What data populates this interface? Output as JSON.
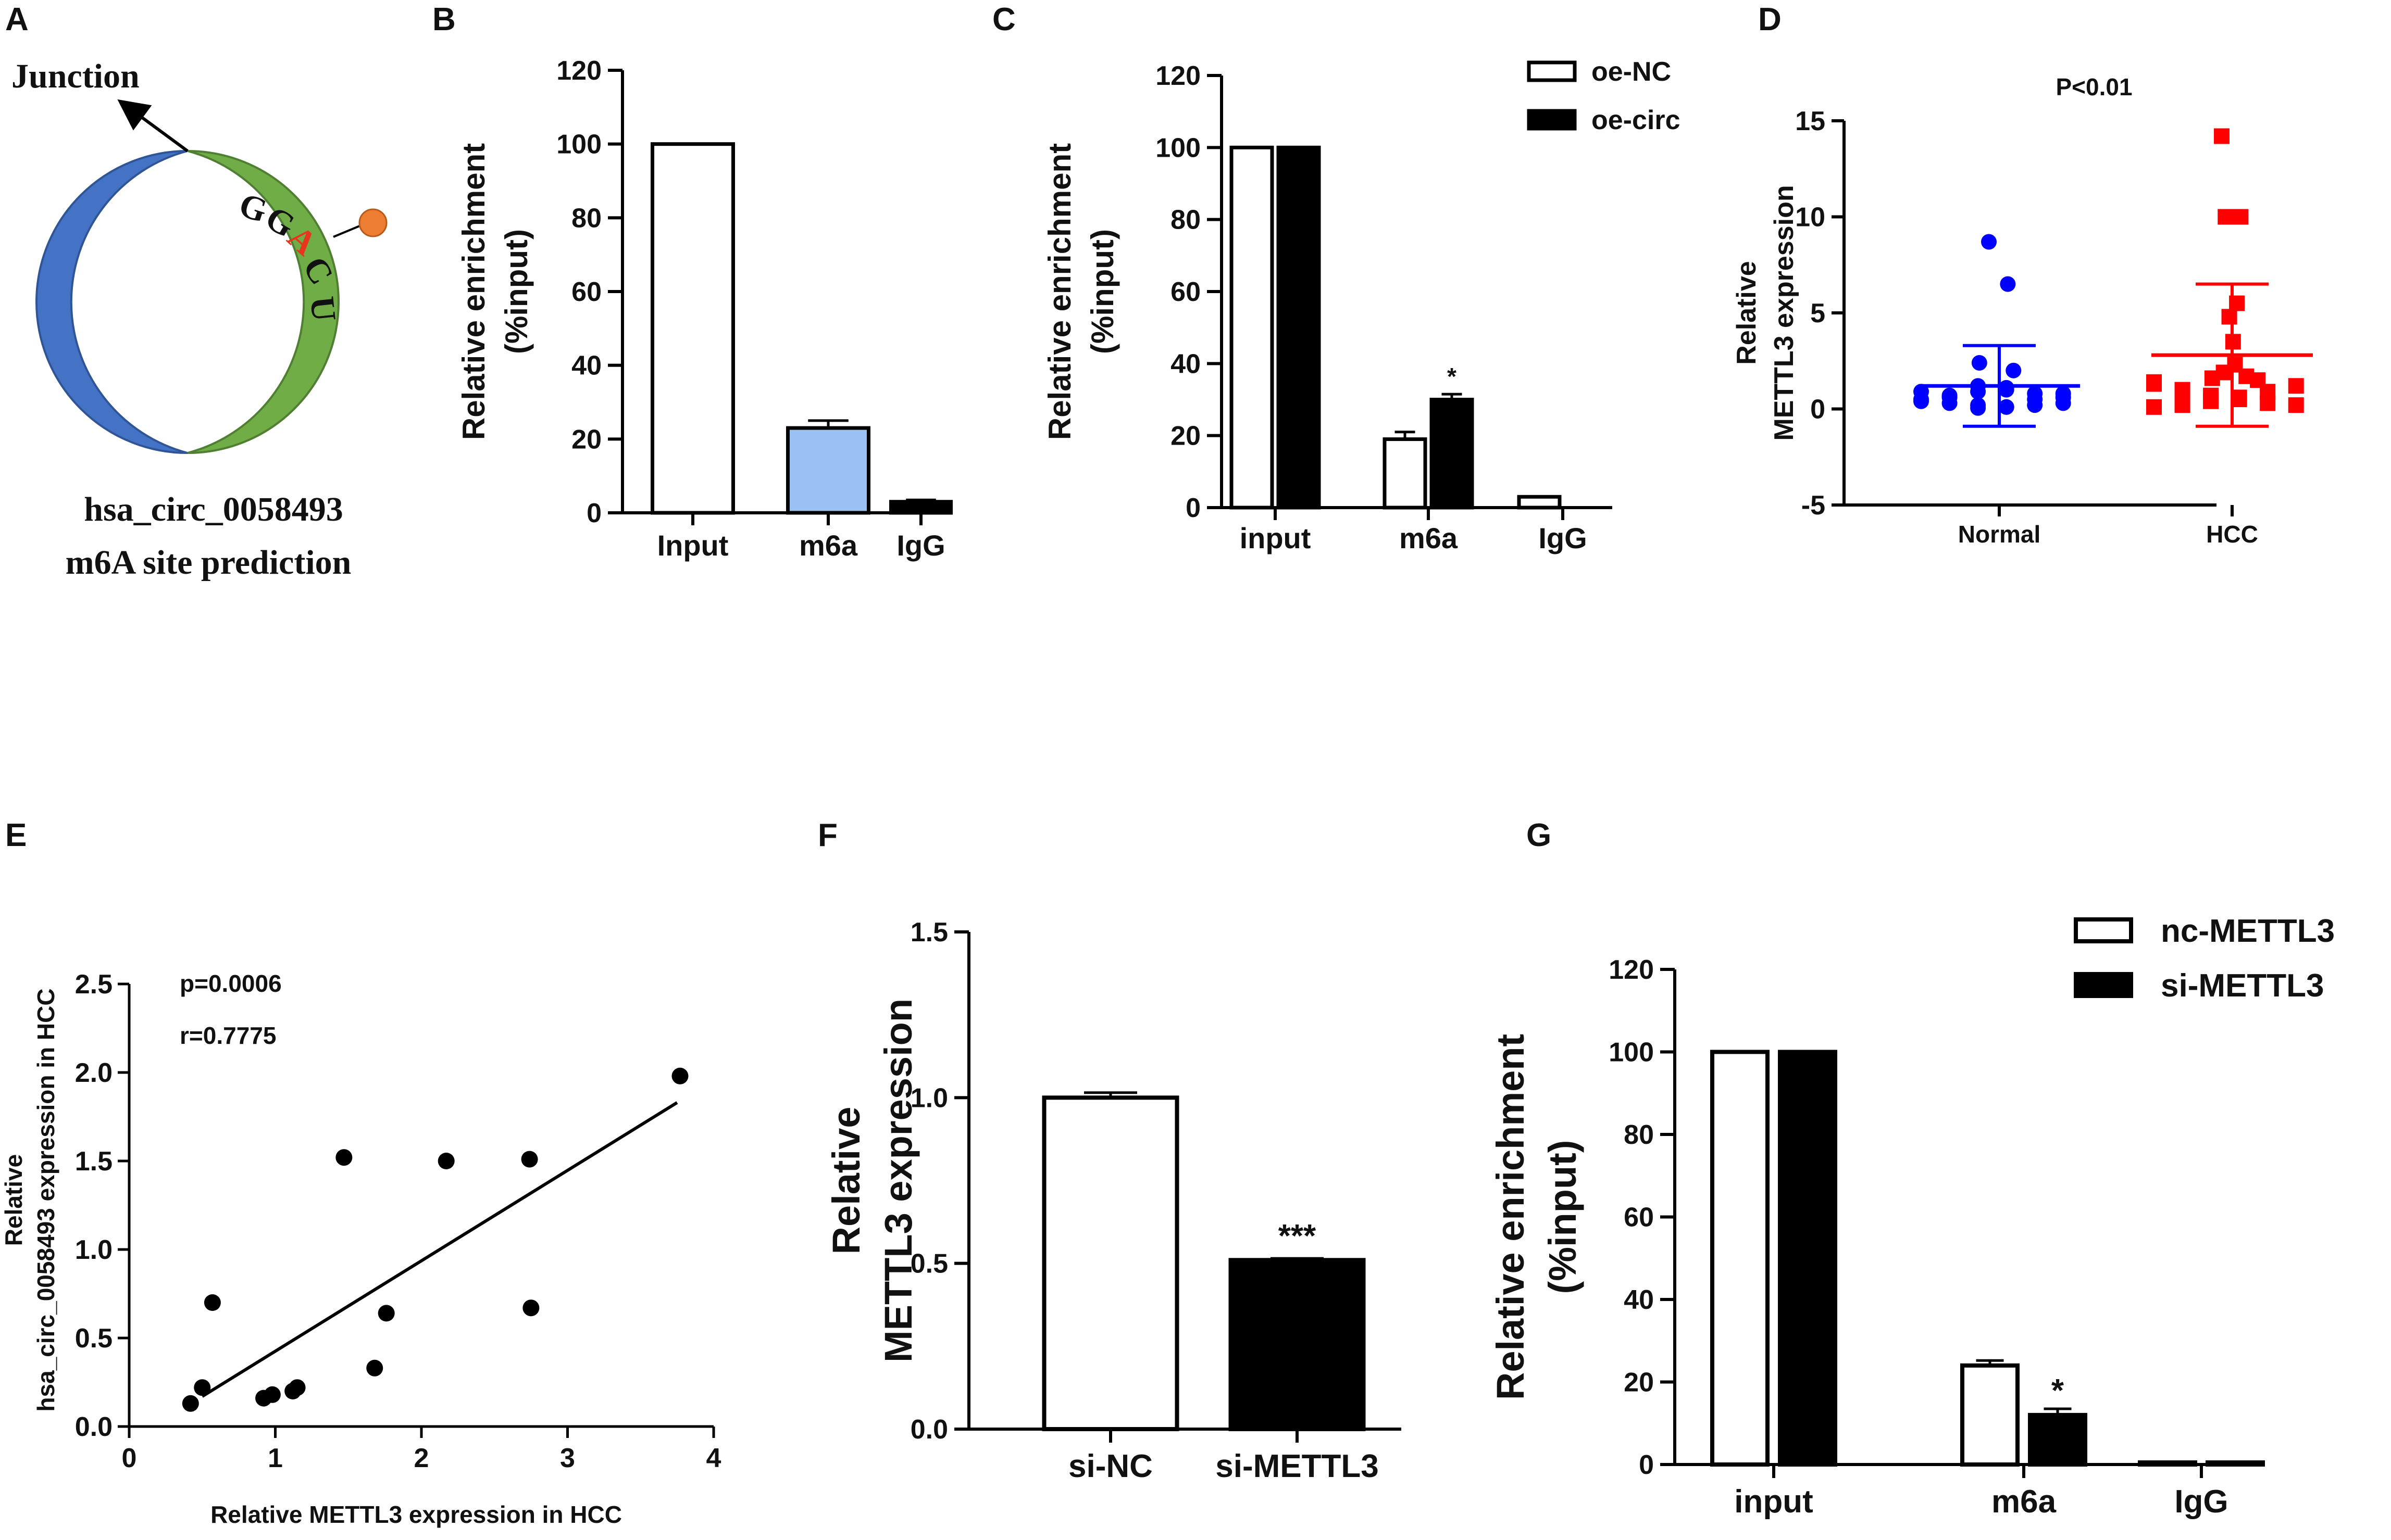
{
  "panels": {
    "A": {
      "letter": "A",
      "junction_label": "Junction",
      "motif": [
        "G",
        "G",
        "A",
        "C",
        "U"
      ],
      "caption_line1": "hsa_circ_0058493",
      "caption_line2": "m6A site prediction",
      "colors": {
        "blue_arc": "#4472C4",
        "green_arc": "#70AD47",
        "dot": "#ED7D31",
        "highlight_letter": "#E8351E"
      }
    },
    "B": {
      "letter": "B"
    },
    "C": {
      "letter": "C"
    },
    "D": {
      "letter": "D"
    },
    "E": {
      "letter": "E"
    },
    "F": {
      "letter": "F"
    },
    "G": {
      "letter": "G"
    }
  },
  "chart_data": [
    {
      "id": "B",
      "type": "bar",
      "categories": [
        "Input",
        "m6a",
        "IgG"
      ],
      "values": [
        100,
        23,
        3
      ],
      "errors": [
        0,
        2,
        0.5
      ],
      "colors": [
        "#FFFFFF",
        "#99C2F2",
        "#000000"
      ],
      "ylabel_line1": "Relative enrichment",
      "ylabel_line2": "(%input)",
      "ylim": [
        0,
        120
      ],
      "yticks": [
        0,
        20,
        40,
        60,
        80,
        100,
        120
      ]
    },
    {
      "id": "C",
      "type": "bar",
      "categories": [
        "input",
        "m6a",
        "IgG"
      ],
      "series": [
        {
          "name": "oe-NC",
          "values": [
            100,
            19,
            3
          ],
          "errors": [
            0,
            2,
            0
          ],
          "color": "#FFFFFF"
        },
        {
          "name": "oe-circ",
          "values": [
            100,
            30,
            0
          ],
          "errors": [
            0,
            1.5,
            0
          ],
          "color": "#000000"
        }
      ],
      "annotations": [
        {
          "category": "m6a",
          "series": "oe-circ",
          "text": "*"
        }
      ],
      "ylabel_line1": "Relative enrichment",
      "ylabel_line2": "(%input)",
      "ylim": [
        0,
        120
      ],
      "yticks": [
        0,
        20,
        40,
        60,
        80,
        100,
        120
      ]
    },
    {
      "id": "D",
      "type": "scatter",
      "title": "P<0.01",
      "categories": [
        "Normal",
        "HCC"
      ],
      "series": [
        {
          "name": "Normal",
          "color": "#0000FF",
          "marker": "circle",
          "mean": 1.2,
          "sd_upper": 3.3,
          "sd_lower": -0.9,
          "values": [
            8.7,
            6.5,
            2.4,
            2.0,
            1.2,
            1.1,
            1.0,
            0.9,
            0.8,
            0.7,
            0.6,
            0.5,
            0.4,
            0.3,
            0.3,
            0.2,
            0.2,
            0.1,
            0.1,
            0.05,
            0.5,
            0.6,
            0.8,
            0.9
          ]
        },
        {
          "name": "HCC",
          "color": "#FF0000",
          "marker": "square",
          "mean": 2.8,
          "sd_upper": 6.5,
          "sd_lower": -0.9,
          "values": [
            14.2,
            10.0,
            10.0,
            5.5,
            4.8,
            3.5,
            2.3,
            1.9,
            1.7,
            1.6,
            1.5,
            1.4,
            1.3,
            1.2,
            1.0,
            0.9,
            0.7,
            0.6,
            0.5,
            0.4,
            0.3,
            0.2,
            0.2,
            0.1
          ]
        }
      ],
      "ylabel_line1": "Relative",
      "ylabel_line2": "METTL3 expression",
      "ylim": [
        -5,
        15
      ],
      "yticks": [
        -5,
        0,
        5,
        10,
        15
      ]
    },
    {
      "id": "E",
      "type": "scatter",
      "points": [
        [
          0.42,
          0.13
        ],
        [
          0.5,
          0.22
        ],
        [
          0.57,
          0.7
        ],
        [
          0.92,
          0.16
        ],
        [
          0.98,
          0.18
        ],
        [
          1.12,
          0.2
        ],
        [
          1.15,
          0.22
        ],
        [
          1.47,
          1.52
        ],
        [
          1.68,
          0.33
        ],
        [
          1.76,
          0.64
        ],
        [
          2.17,
          1.5
        ],
        [
          2.74,
          1.51
        ],
        [
          2.75,
          0.67
        ],
        [
          3.77,
          1.98
        ]
      ],
      "fit_line": [
        [
          0.5,
          0.17
        ],
        [
          3.75,
          1.83
        ]
      ],
      "annotation_p": "p=0.0006",
      "annotation_r": "r=0.7775",
      "xlabel": "Relative METTL3 expression in HCC",
      "ylabel_line1": "Relative",
      "ylabel_line2": "hsa_circ_0058493 expression in HCC",
      "xlim": [
        0,
        4
      ],
      "ylim": [
        0,
        2.5
      ],
      "xticks": [
        0,
        1,
        2,
        3,
        4
      ],
      "yticks": [
        0.0,
        0.5,
        1.0,
        1.5,
        2.0,
        2.5
      ],
      "ytick_labels": [
        "0.0",
        "0.5",
        "1.0",
        "1.5",
        "2.0",
        "2.5"
      ]
    },
    {
      "id": "F",
      "type": "bar",
      "categories": [
        "si-NC",
        "si-METTL3"
      ],
      "values": [
        1.0,
        0.51
      ],
      "errors": [
        0.015,
        0.005
      ],
      "colors": [
        "#FFFFFF",
        "#000000"
      ],
      "annotations": [
        {
          "category": "si-METTL3",
          "text": "***"
        }
      ],
      "ylabel_line1": "Relative",
      "ylabel_line2": "METTL3 expression",
      "ylim": [
        0,
        1.5
      ],
      "yticks": [
        0.0,
        0.5,
        1.0,
        1.5
      ],
      "ytick_labels": [
        "0.0",
        "0.5",
        "1.0",
        "1.5"
      ]
    },
    {
      "id": "G",
      "type": "bar",
      "categories": [
        "input",
        "m6a",
        "IgG"
      ],
      "series": [
        {
          "name": "nc-METTL3",
          "values": [
            100,
            24,
            0.5
          ],
          "errors": [
            0,
            1.2,
            0
          ],
          "color": "#FFFFFF"
        },
        {
          "name": "si-METTL3",
          "values": [
            100,
            12,
            0.5
          ],
          "errors": [
            0,
            1.5,
            0
          ],
          "color": "#000000"
        }
      ],
      "annotations": [
        {
          "category": "m6a",
          "series": "si-METTL3",
          "text": "*"
        }
      ],
      "ylabel_line1": "Relative enrichment",
      "ylabel_line2": "(%input)",
      "ylim": [
        0,
        120
      ],
      "yticks": [
        0,
        20,
        40,
        60,
        80,
        100,
        120
      ]
    }
  ]
}
